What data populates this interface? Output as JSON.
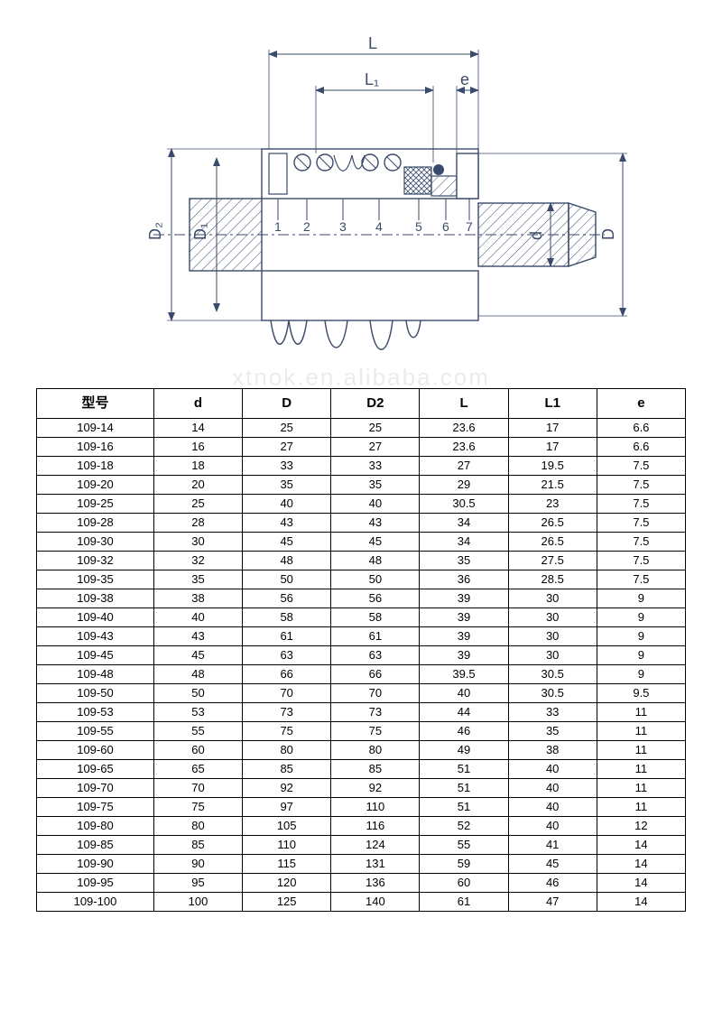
{
  "diagram": {
    "stroke_color": "#3a4a6a",
    "stroke_width": 1.4,
    "hatch_color": "#3a4a6a",
    "bg": "#ffffff",
    "dim_labels": {
      "L": "L",
      "L1": "L₁",
      "e": "e",
      "D2": "D₂",
      "D1": "D₁",
      "d": "d",
      "D": "D"
    },
    "part_numbers": [
      "1",
      "2",
      "3",
      "4",
      "5",
      "6",
      "7"
    ]
  },
  "watermark": "xtnok.en.alibaba.com",
  "table": {
    "columns": [
      "型号",
      "d",
      "D",
      "D2",
      "L",
      "L1",
      "e"
    ],
    "rows": [
      [
        "109-14",
        "14",
        "25",
        "25",
        "23.6",
        "17",
        "6.6"
      ],
      [
        "109-16",
        "16",
        "27",
        "27",
        "23.6",
        "17",
        "6.6"
      ],
      [
        "109-18",
        "18",
        "33",
        "33",
        "27",
        "19.5",
        "7.5"
      ],
      [
        "109-20",
        "20",
        "35",
        "35",
        "29",
        "21.5",
        "7.5"
      ],
      [
        "109-25",
        "25",
        "40",
        "40",
        "30.5",
        "23",
        "7.5"
      ],
      [
        "109-28",
        "28",
        "43",
        "43",
        "34",
        "26.5",
        "7.5"
      ],
      [
        "109-30",
        "30",
        "45",
        "45",
        "34",
        "26.5",
        "7.5"
      ],
      [
        "109-32",
        "32",
        "48",
        "48",
        "35",
        "27.5",
        "7.5"
      ],
      [
        "109-35",
        "35",
        "50",
        "50",
        "36",
        "28.5",
        "7.5"
      ],
      [
        "109-38",
        "38",
        "56",
        "56",
        "39",
        "30",
        "9"
      ],
      [
        "109-40",
        "40",
        "58",
        "58",
        "39",
        "30",
        "9"
      ],
      [
        "109-43",
        "43",
        "61",
        "61",
        "39",
        "30",
        "9"
      ],
      [
        "109-45",
        "45",
        "63",
        "63",
        "39",
        "30",
        "9"
      ],
      [
        "109-48",
        "48",
        "66",
        "66",
        "39.5",
        "30.5",
        "9"
      ],
      [
        "109-50",
        "50",
        "70",
        "70",
        "40",
        "30.5",
        "9.5"
      ],
      [
        "109-53",
        "53",
        "73",
        "73",
        "44",
        "33",
        "11"
      ],
      [
        "109-55",
        "55",
        "75",
        "75",
        "46",
        "35",
        "11"
      ],
      [
        "109-60",
        "60",
        "80",
        "80",
        "49",
        "38",
        "11"
      ],
      [
        "109-65",
        "65",
        "85",
        "85",
        "51",
        "40",
        "11"
      ],
      [
        "109-70",
        "70",
        "92",
        "92",
        "51",
        "40",
        "11"
      ],
      [
        "109-75",
        "75",
        "97",
        "110",
        "51",
        "40",
        "11"
      ],
      [
        "109-80",
        "80",
        "105",
        "116",
        "52",
        "40",
        "12"
      ],
      [
        "109-85",
        "85",
        "110",
        "124",
        "55",
        "41",
        "14"
      ],
      [
        "109-90",
        "90",
        "115",
        "131",
        "59",
        "45",
        "14"
      ],
      [
        "109-95",
        "95",
        "120",
        "136",
        "60",
        "46",
        "14"
      ],
      [
        "109-100",
        "100",
        "125",
        "140",
        "61",
        "47",
        "14"
      ]
    ]
  }
}
